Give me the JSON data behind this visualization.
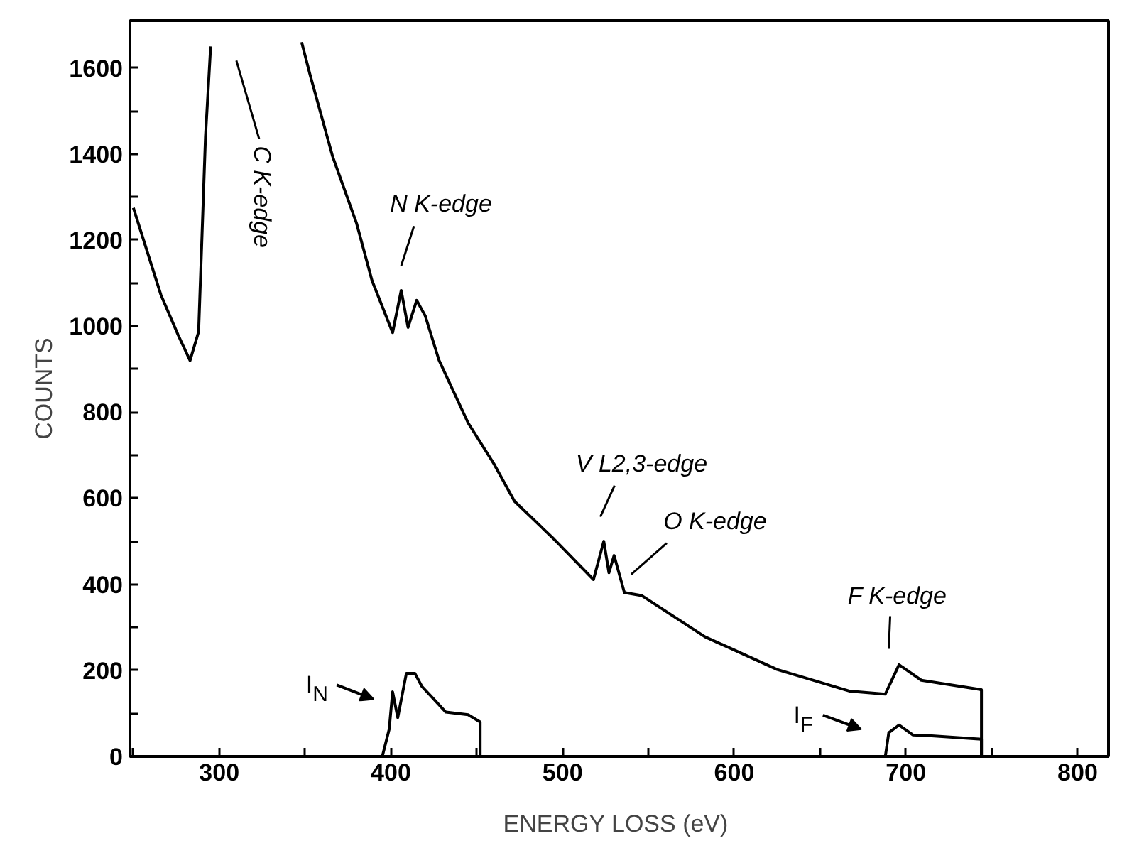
{
  "chart_data": {
    "type": "line",
    "xlabel": "ENERGY LOSS  (eV)",
    "ylabel": "COUNTS",
    "xlim": [
      248,
      818
    ],
    "ylim": [
      0,
      1710
    ],
    "xticks": [
      {
        "value": 250,
        "label": null
      },
      300,
      {
        "value": 350,
        "label": null
      },
      400,
      {
        "value": 450,
        "label": null
      },
      500,
      {
        "value": 550,
        "label": null
      },
      600,
      {
        "value": 650,
        "label": null
      },
      700,
      {
        "value": 750,
        "label": null
      },
      800
    ],
    "yticks": [
      0,
      {
        "value": 100,
        "label": null
      },
      200,
      {
        "value": 300,
        "label": null
      },
      400,
      {
        "value": 500,
        "label": null
      },
      600,
      {
        "value": 700,
        "label": null
      },
      800,
      {
        "value": 900,
        "label": null
      },
      1000,
      {
        "value": 1100,
        "label": null
      },
      1200,
      {
        "value": 1300,
        "label": null
      },
      1400,
      {
        "value": 1500,
        "label": null
      },
      1600
    ],
    "grid": false,
    "marker": "none",
    "line_style": "solid",
    "series": [
      {
        "color": "#000000",
        "x": [
          250,
          266,
          276,
          283,
          288,
          292,
          295,
          320,
          348,
          353,
          366,
          380,
          389,
          401,
          406,
          410,
          415,
          420,
          428,
          445,
          460,
          472,
          495,
          518,
          524,
          527,
          530,
          536,
          546,
          583,
          625,
          667,
          688,
          696,
          709,
          744,
          744
        ],
        "values": [
          1275,
          1073,
          980,
          920,
          987,
          1440,
          1650,
          null,
          1660,
          1583,
          1395,
          1239,
          1106,
          985,
          1083,
          997,
          1060,
          1024,
          921,
          775,
          680,
          593,
          505,
          411,
          500,
          427,
          467,
          381,
          374,
          278,
          202,
          152,
          145,
          213,
          177,
          155,
          0
        ]
      },
      {
        "color": "#000000",
        "x": [
          395,
          399,
          401,
          404,
          409,
          414,
          418,
          425,
          432,
          445,
          452,
          452
        ],
        "values": [
          0,
          63,
          150,
          90,
          193,
          193,
          163,
          133,
          103,
          97,
          80,
          0
        ]
      },
      {
        "color": "#000000",
        "x": [
          688,
          690,
          696,
          704,
          715,
          744,
          744
        ],
        "values": [
          0,
          55,
          73,
          50,
          48,
          40,
          0
        ]
      }
    ],
    "annotations": [
      "C K-edge",
      "N K-edge",
      "V L2,3-edge",
      "O K-edge",
      "F K-edge",
      "I$_{N}$",
      "I$_{F}$"
    ]
  }
}
